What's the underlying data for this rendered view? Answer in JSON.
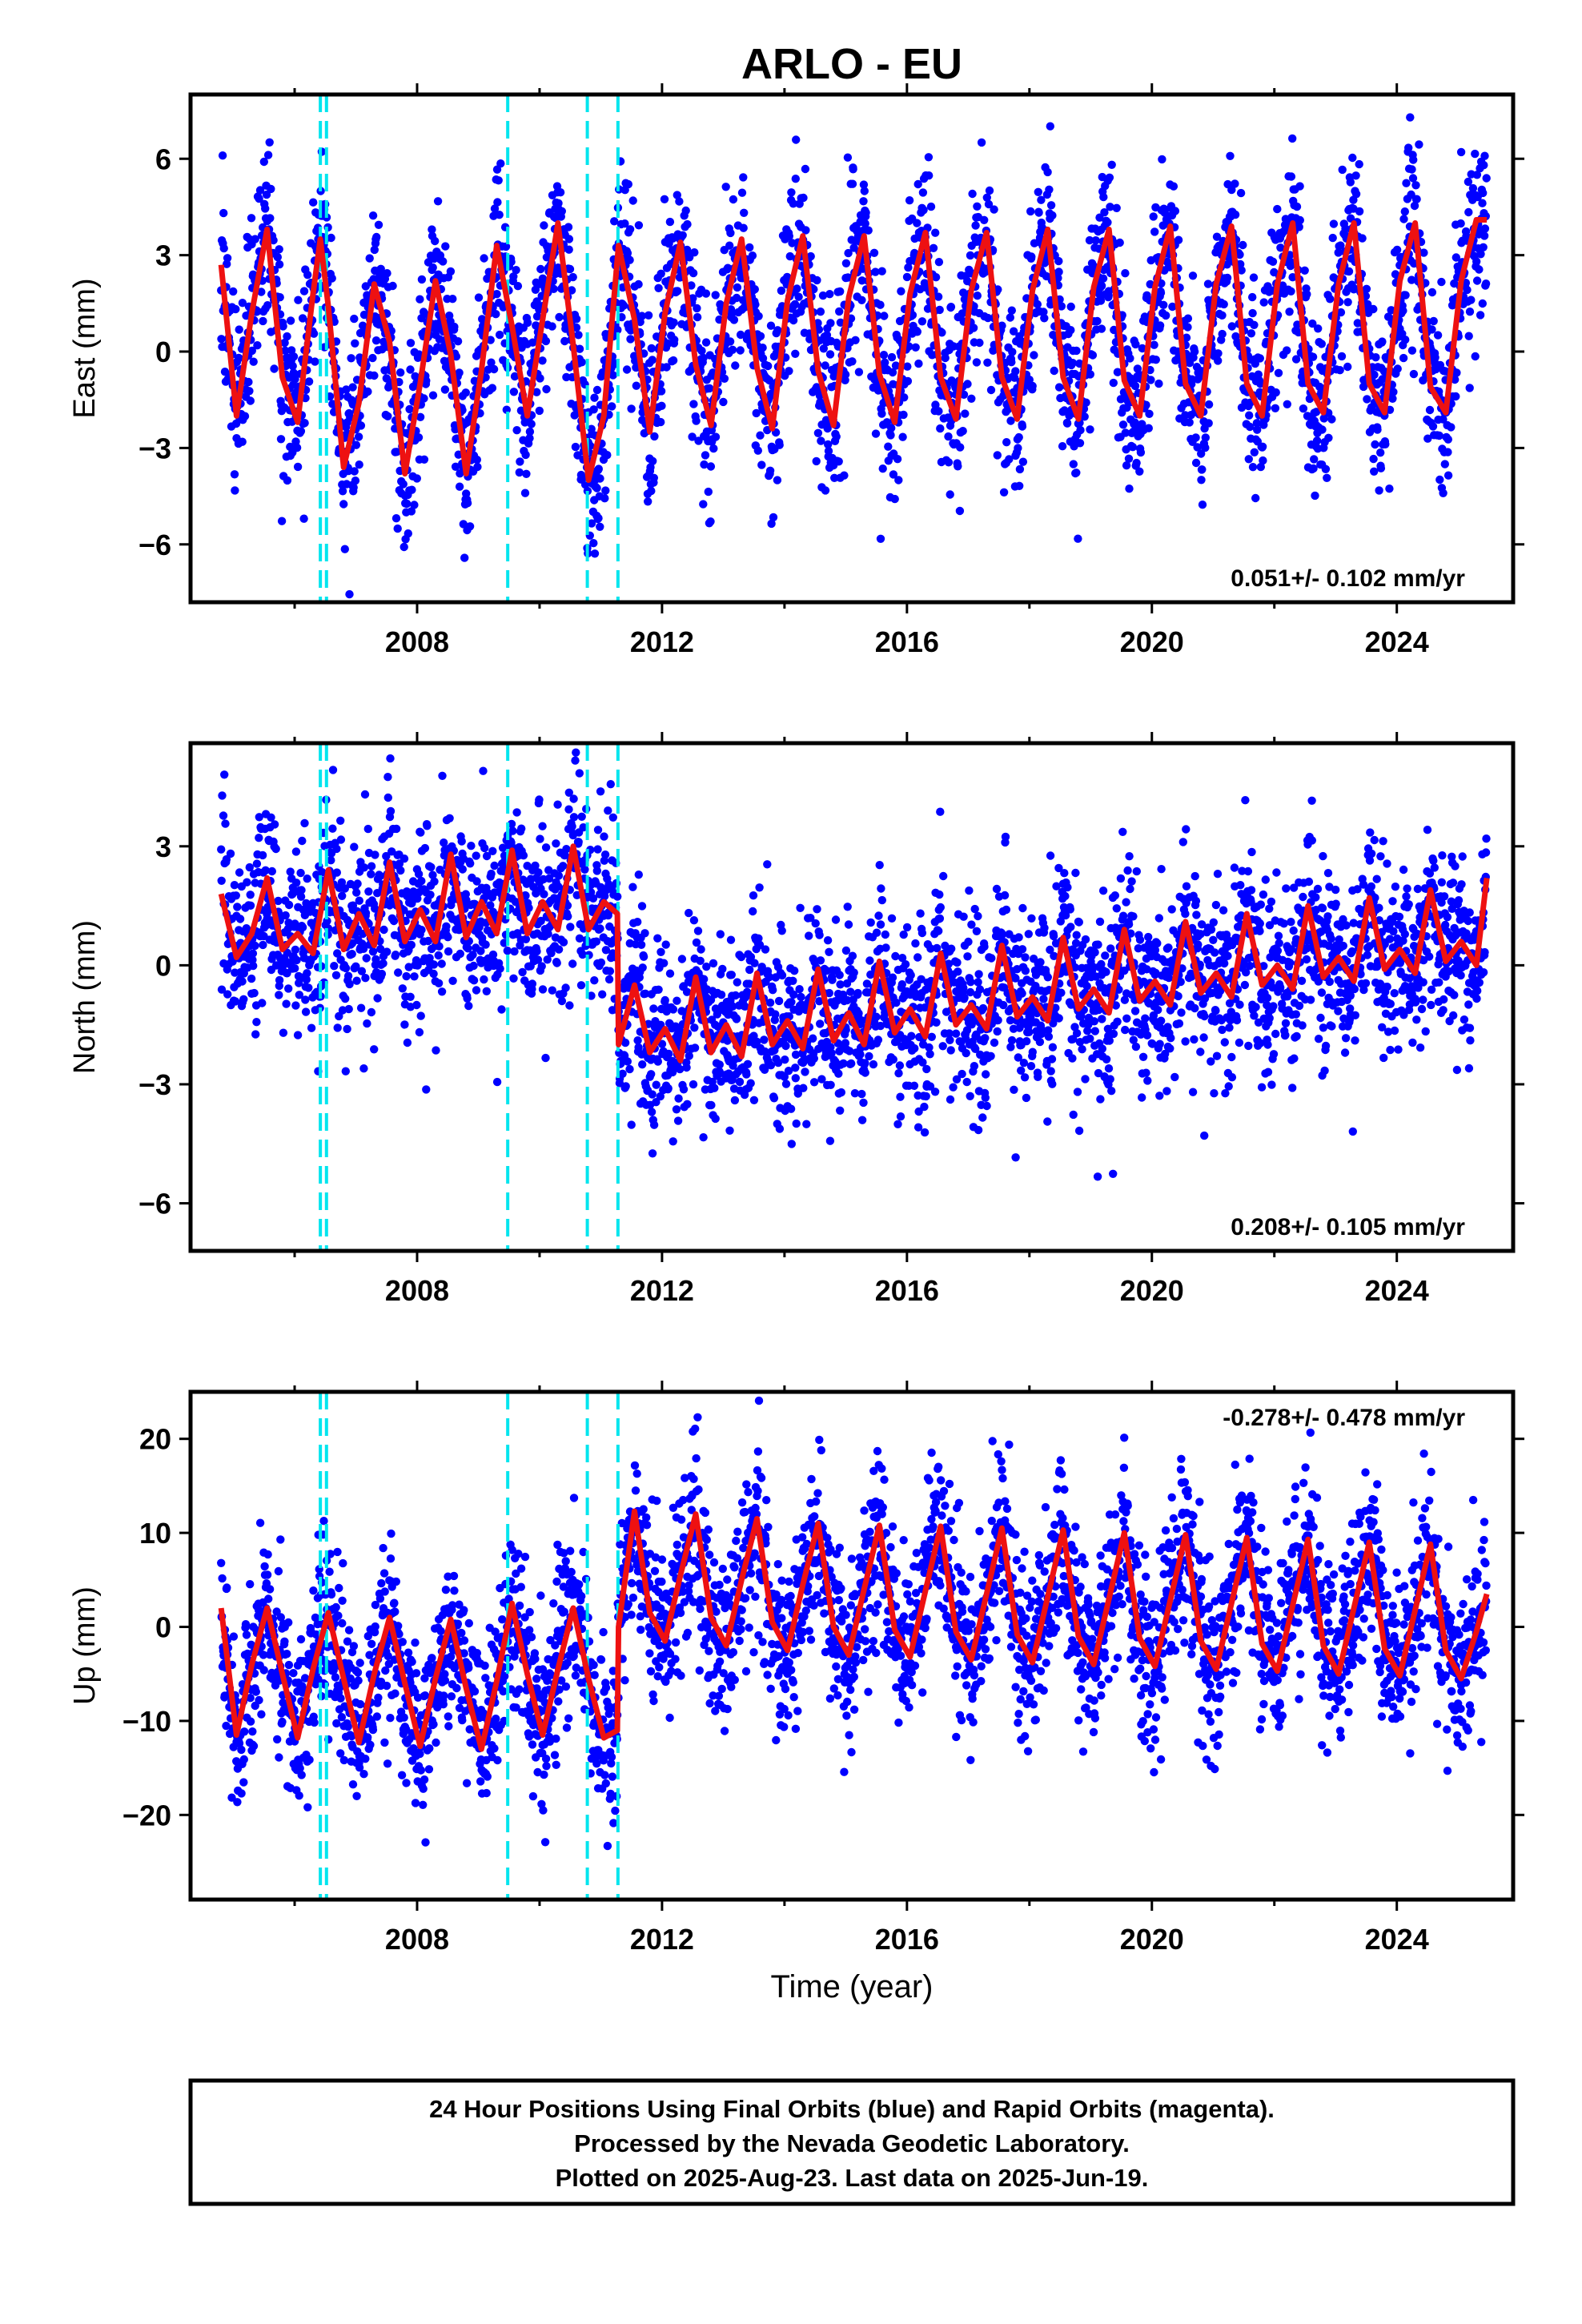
{
  "title": "ARLO - EU",
  "xlabel": "Time (year)",
  "footer": {
    "line1": "24 Hour Positions Using Final Orbits (blue) and Rapid Orbits (magenta).",
    "line2": "Processed by the Nevada Geodetic Laboratory.",
    "line3": "Plotted on 2025-Aug-23. Last data on 2025-Jun-19."
  },
  "colors": {
    "data": "#0000ff",
    "model": "#ee1111",
    "breaks": "#00e5ee",
    "frame": "#000000"
  },
  "chart_data": [
    {
      "type": "scatter",
      "component": "east",
      "ylabel": "East (mm)",
      "rate_text": "0.051+/- 0.102 mm/yr",
      "xlim": [
        2004.3,
        2025.9
      ],
      "ylim": [
        -7.8,
        8.0
      ],
      "xticks": [
        2008,
        2012,
        2016,
        2020,
        2024
      ],
      "yticks": [
        -6,
        -3,
        0,
        3,
        6
      ],
      "ytick_labels": [
        "−6",
        "−3",
        "0",
        "3",
        "6"
      ],
      "breaks": [
        2006.42,
        2006.52,
        2009.48,
        2010.78,
        2011.28
      ],
      "grid": false,
      "model": {
        "x": [
          2004.8,
          2005.05,
          2005.3,
          2005.55,
          2005.8,
          2006.05,
          2006.3,
          2006.42,
          2006.55,
          2006.8,
          2007.05,
          2007.3,
          2007.55,
          2007.8,
          2008.05,
          2008.3,
          2008.55,
          2008.8,
          2009.05,
          2009.3,
          2009.55,
          2009.8,
          2010.05,
          2010.3,
          2010.55,
          2010.8,
          2011.05,
          2011.29,
          2011.55,
          2011.8,
          2012.05,
          2012.3,
          2012.55,
          2012.8,
          2013.05,
          2013.3,
          2013.55,
          2013.8,
          2014.05,
          2014.3,
          2014.55,
          2014.8,
          2015.05,
          2015.3,
          2015.55,
          2015.8,
          2016.05,
          2016.3,
          2016.55,
          2016.8,
          2017.05,
          2017.3,
          2017.55,
          2017.8,
          2018.05,
          2018.3,
          2018.55,
          2018.8,
          2019.05,
          2019.3,
          2019.55,
          2019.8,
          2020.05,
          2020.3,
          2020.55,
          2020.8,
          2021.05,
          2021.3,
          2021.55,
          2021.8,
          2022.05,
          2022.3,
          2022.55,
          2022.8,
          2023.05,
          2023.3,
          2023.55,
          2023.8,
          2024.05,
          2024.3,
          2024.55,
          2024.8,
          2025.05,
          2025.3,
          2025.47
        ],
        "y": [
          2.7,
          -2.0,
          1.2,
          3.8,
          -0.8,
          -2.2,
          1.8,
          3.5,
          1.4,
          -3.6,
          -1.6,
          2.1,
          0.3,
          -3.8,
          -1.0,
          2.2,
          -0.1,
          -3.8,
          -0.6,
          3.3,
          0.8,
          -2.0,
          1.0,
          4.0,
          0.2,
          -4.0,
          -2.0,
          3.3,
          1.0,
          -2.5,
          1.2,
          3.4,
          -0.4,
          -2.3,
          1.5,
          3.5,
          -0.5,
          -2.4,
          1.6,
          3.6,
          -0.6,
          -2.3,
          1.7,
          3.6,
          -0.7,
          -2.2,
          1.8,
          3.7,
          -0.8,
          -2.1,
          1.9,
          3.7,
          -0.8,
          -2.1,
          1.9,
          3.8,
          -0.8,
          -2.1,
          2.0,
          3.8,
          -0.9,
          -2.0,
          2.0,
          3.9,
          -1.0,
          -2.0,
          2.1,
          3.9,
          -1.0,
          -2.0,
          2.1,
          4.0,
          -1.0,
          -1.9,
          2.1,
          4.0,
          -1.0,
          -1.9,
          2.2,
          4.0,
          -1.1,
          -1.9,
          2.2,
          4.1,
          4.1
        ]
      }
    },
    {
      "type": "scatter",
      "component": "north",
      "ylabel": "North (mm)",
      "rate_text": "0.208+/- 0.105 mm/yr",
      "xlim": [
        2004.3,
        2025.9
      ],
      "ylim": [
        -7.2,
        5.6
      ],
      "xticks": [
        2008,
        2012,
        2016,
        2020,
        2024
      ],
      "yticks": [
        -6,
        -3,
        0,
        3
      ],
      "ytick_labels": [
        "−6",
        "−3",
        "0",
        "3"
      ],
      "breaks": [
        2006.42,
        2006.52,
        2009.48,
        2010.78,
        2011.28
      ],
      "grid": false,
      "model": {
        "x": [
          2004.8,
          2005.05,
          2005.3,
          2005.55,
          2005.8,
          2006.05,
          2006.3,
          2006.55,
          2006.8,
          2007.05,
          2007.3,
          2007.55,
          2007.8,
          2008.05,
          2008.3,
          2008.55,
          2008.8,
          2009.05,
          2009.3,
          2009.55,
          2009.8,
          2010.05,
          2010.3,
          2010.55,
          2010.8,
          2011.05,
          2011.27,
          2011.29,
          2011.55,
          2011.8,
          2012.05,
          2012.3,
          2012.55,
          2012.8,
          2013.05,
          2013.3,
          2013.55,
          2013.8,
          2014.05,
          2014.3,
          2014.55,
          2014.8,
          2015.05,
          2015.3,
          2015.55,
          2015.8,
          2016.05,
          2016.3,
          2016.55,
          2016.8,
          2017.05,
          2017.3,
          2017.55,
          2017.8,
          2018.05,
          2018.3,
          2018.55,
          2018.8,
          2019.05,
          2019.3,
          2019.55,
          2019.8,
          2020.05,
          2020.3,
          2020.55,
          2020.8,
          2021.05,
          2021.3,
          2021.55,
          2021.8,
          2022.05,
          2022.3,
          2022.55,
          2022.8,
          2023.05,
          2023.3,
          2023.55,
          2023.8,
          2024.05,
          2024.3,
          2024.55,
          2024.8,
          2025.05,
          2025.3,
          2025.47
        ],
        "y": [
          1.8,
          0.2,
          0.8,
          2.2,
          0.4,
          0.8,
          0.3,
          2.4,
          0.4,
          1.3,
          0.5,
          2.6,
          0.6,
          1.4,
          0.6,
          2.8,
          0.7,
          1.6,
          0.8,
          2.9,
          0.8,
          1.6,
          0.9,
          3.0,
          0.9,
          1.6,
          1.3,
          -2.0,
          -0.5,
          -2.2,
          -1.6,
          -2.4,
          -0.3,
          -2.2,
          -1.5,
          -2.3,
          -0.2,
          -2.0,
          -1.4,
          -2.1,
          -0.1,
          -1.9,
          -1.2,
          -2.0,
          0.1,
          -1.7,
          -1.1,
          -1.8,
          0.3,
          -1.5,
          -1.0,
          -1.6,
          0.5,
          -1.3,
          -0.8,
          -1.4,
          0.7,
          -1.1,
          -0.6,
          -1.2,
          0.9,
          -0.9,
          -0.4,
          -1.0,
          1.1,
          -0.7,
          -0.2,
          -0.8,
          1.3,
          -0.5,
          0.0,
          -0.6,
          1.5,
          -0.3,
          0.2,
          -0.4,
          1.7,
          -0.1,
          0.4,
          -0.2,
          1.9,
          0.1,
          0.6,
          0.0,
          2.2
        ]
      }
    },
    {
      "type": "scatter",
      "component": "up",
      "ylabel": "Up (mm)",
      "rate_text": "-0.278+/- 0.478 mm/yr",
      "xlim": [
        2004.3,
        2025.9
      ],
      "ylim": [
        -29,
        25
      ],
      "xticks": [
        2008,
        2012,
        2016,
        2020,
        2024
      ],
      "yticks": [
        -20,
        -10,
        0,
        10,
        20
      ],
      "ytick_labels": [
        "−20",
        "−10",
        "0",
        "10",
        "20"
      ],
      "breaks": [
        2006.42,
        2006.52,
        2009.48,
        2010.78,
        2011.28
      ],
      "grid": false,
      "model": {
        "x": [
          2004.8,
          2005.05,
          2005.3,
          2005.55,
          2005.8,
          2006.05,
          2006.3,
          2006.55,
          2006.8,
          2007.05,
          2007.3,
          2007.55,
          2007.8,
          2008.05,
          2008.3,
          2008.55,
          2008.8,
          2009.05,
          2009.3,
          2009.55,
          2009.8,
          2010.05,
          2010.3,
          2010.55,
          2010.8,
          2011.05,
          2011.27,
          2011.29,
          2011.55,
          2011.8,
          2012.05,
          2012.3,
          2012.55,
          2012.8,
          2013.05,
          2013.3,
          2013.55,
          2013.8,
          2014.05,
          2014.3,
          2014.55,
          2014.8,
          2015.05,
          2015.3,
          2015.55,
          2015.8,
          2016.05,
          2016.3,
          2016.55,
          2016.8,
          2017.05,
          2017.3,
          2017.55,
          2017.8,
          2018.05,
          2018.3,
          2018.55,
          2018.8,
          2019.05,
          2019.3,
          2019.55,
          2019.8,
          2020.05,
          2020.3,
          2020.55,
          2020.8,
          2021.05,
          2021.3,
          2021.55,
          2021.8,
          2022.05,
          2022.3,
          2022.55,
          2022.8,
          2023.05,
          2023.3,
          2023.55,
          2023.8,
          2024.05,
          2024.3,
          2024.55,
          2024.8,
          2025.05,
          2025.3,
          2025.47
        ],
        "y": [
          2.0,
          -11.5,
          -4.0,
          2.0,
          -5.0,
          -11.8,
          -4.5,
          1.5,
          -5.5,
          -12.3,
          -5.0,
          1.0,
          -6.0,
          -12.7,
          -5.5,
          0.8,
          -6.5,
          -13.0,
          -5.8,
          2.5,
          -5.0,
          -11.5,
          -4.5,
          2.0,
          -5.5,
          -11.8,
          -11.0,
          0.0,
          12.3,
          1.5,
          -1.5,
          5.5,
          12.0,
          1.0,
          -2.0,
          5.0,
          11.5,
          0.5,
          -2.5,
          4.5,
          11.0,
          0.0,
          -3.0,
          4.0,
          10.8,
          -0.3,
          -3.2,
          3.8,
          10.7,
          -0.5,
          -3.5,
          3.5,
          10.5,
          -0.8,
          -3.8,
          3.2,
          10.3,
          -1.0,
          -4.0,
          3.0,
          10.0,
          -1.2,
          -4.2,
          2.8,
          9.8,
          -1.5,
          -4.5,
          2.5,
          9.5,
          -1.8,
          -4.7,
          2.3,
          9.3,
          -2.0,
          -5.0,
          2.0,
          9.0,
          -2.3,
          -5.2,
          1.8,
          8.8,
          -2.5,
          -5.5,
          -0.5,
          3.5
        ]
      }
    }
  ]
}
